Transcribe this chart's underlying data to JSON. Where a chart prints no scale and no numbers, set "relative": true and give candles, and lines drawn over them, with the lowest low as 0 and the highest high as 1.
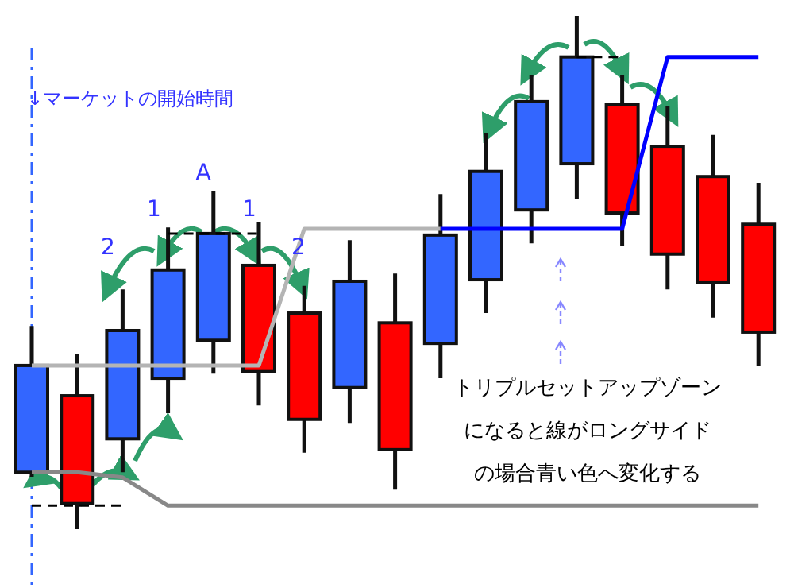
{
  "chart_data": {
    "type": "candlestick",
    "relative": true,
    "categories": [
      null,
      null,
      null,
      null,
      null,
      null,
      null,
      null,
      null,
      null,
      null,
      null,
      null,
      null,
      null,
      null,
      null
    ],
    "ohlc": [
      [
        0.111,
        0.396,
        0.102,
        0.319
      ],
      [
        0.26,
        0.341,
        0,
        0.05
      ],
      [
        0.176,
        0.467,
        0.111,
        0.387
      ],
      [
        0.294,
        0.588,
        0.226,
        0.505
      ],
      [
        0.368,
        0.659,
        0.303,
        0.576
      ],
      [
        0.514,
        0.598,
        0.241,
        0.307
      ],
      [
        0.421,
        0.474,
        0.149,
        0.214
      ],
      [
        0.276,
        0.563,
        0.207,
        0.483
      ],
      [
        0.402,
        0.498,
        0.077,
        0.155
      ],
      [
        0.362,
        0.653,
        0.294,
        0.573
      ],
      [
        0.486,
        0.771,
        0.421,
        0.697
      ],
      [
        0.622,
        0.885,
        0.557,
        0.833
      ],
      [
        0.712,
        1,
        0.644,
        0.92
      ],
      [
        0.827,
        0.885,
        0.551,
        0.616
      ],
      [
        0.746,
        0.824,
        0.467,
        0.536
      ],
      [
        0.687,
        0.768,
        0.412,
        0.48
      ],
      [
        0.594,
        0.675,
        0.319,
        0.384
      ]
    ],
    "colors": [
      "#3366ff",
      "#ff0000",
      "#3366ff",
      "#3366ff",
      "#3366ff",
      "#ff0000",
      "#ff0000",
      "#3366ff",
      "#ff0000",
      "#3366ff",
      "#3366ff",
      "#3366ff",
      "#3366ff",
      "#ff0000",
      "#ff0000",
      "#ff0000",
      "#ff0000"
    ],
    "series": [
      {
        "type": "line",
        "color": "#b4b4b4",
        "values": [
          0.319,
          0.319,
          0.319,
          0.319,
          0.319,
          0.319,
          0.585,
          0.585,
          0.585,
          0.585,
          null,
          null,
          null,
          null,
          null,
          null,
          null
        ]
      },
      {
        "type": "line",
        "color": "#0000ff",
        "values": [
          null,
          null,
          null,
          null,
          null,
          null,
          null,
          null,
          null,
          0.585,
          0.585,
          0.585,
          0.585,
          0.585,
          0.92,
          0.92,
          0.92
        ]
      },
      {
        "type": "line",
        "color": "#888888",
        "values": [
          0.111,
          0.111,
          0.101,
          0.046,
          0.046,
          0.046,
          0.046,
          0.046,
          0.046,
          0.046,
          0.046,
          0.046,
          0.046,
          0.046,
          0.046,
          0.046,
          0.046
        ]
      },
      {
        "type": "line",
        "color": "#000000",
        "line_style": "dashed",
        "values": [
          0.046,
          0.046,
          0.046,
          null,
          null,
          null,
          null,
          null,
          null,
          null,
          null,
          null,
          null,
          null,
          null,
          null,
          null
        ]
      },
      {
        "type": "line",
        "color": "#000000",
        "line_style": "dashed",
        "values": [
          null,
          null,
          null,
          0.576,
          0.576,
          0.576,
          null,
          null,
          null,
          null,
          null,
          null,
          null,
          null,
          null,
          null,
          null
        ]
      },
      {
        "type": "line",
        "color": "#000000",
        "line_style": "dashed",
        "values": [
          null,
          null,
          null,
          null,
          null,
          null,
          null,
          null,
          null,
          null,
          null,
          null,
          0.92,
          0.92,
          null,
          null,
          null
        ]
      }
    ],
    "annotations": [
      "↓マーケットの開始時間",
      "2",
      "1",
      "A",
      "1",
      "2",
      "トリプルセットアップゾーン",
      "になると線がロングサイド",
      "の場合青い色へ変化する"
    ]
  }
}
